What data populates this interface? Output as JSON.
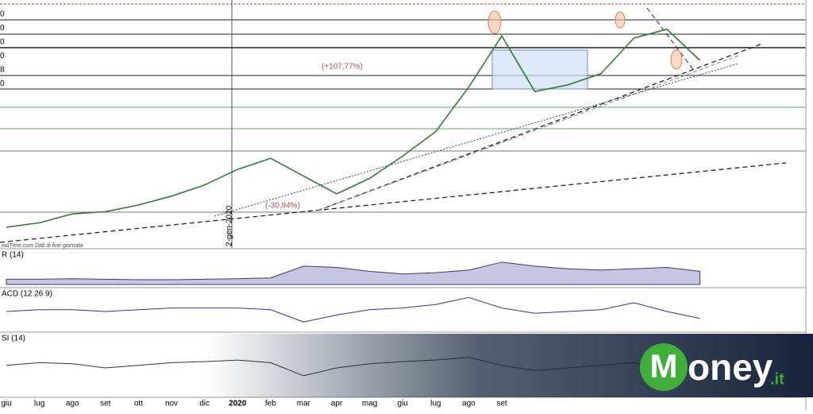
{
  "chart_data": [
    {
      "type": "line",
      "name": "price",
      "categories": [
        "giu",
        "lug",
        "ago",
        "set",
        "ott",
        "nov",
        "dic",
        "2020",
        "feb",
        "mar",
        "apr",
        "mag",
        "giu",
        "lug",
        "ago",
        "set",
        null,
        null,
        null,
        null,
        null,
        null
      ],
      "values": [
        5,
        7,
        11,
        12,
        15,
        19,
        24,
        31,
        36,
        28,
        20,
        27,
        37,
        48,
        68,
        91,
        66,
        69,
        74,
        90,
        94,
        80
      ],
      "color": "#2e7d32",
      "ylim": [
        0,
        100
      ],
      "annotations": [
        "(+107,77%)",
        "(-30,94%)",
        "2-gen-2020"
      ],
      "source": "ealTime.com Dati di fine giornata",
      "tick_fragments": [
        "0",
        "0",
        "0",
        "0",
        "8",
        "0"
      ]
    },
    {
      "type": "area",
      "title": "R (14)",
      "values": [
        20,
        20,
        22,
        20,
        18,
        18,
        20,
        22,
        25,
        70,
        65,
        50,
        40,
        45,
        55,
        85,
        70,
        60,
        55,
        60,
        65,
        50
      ],
      "color": "#3a3a6a",
      "ylim": [
        0,
        100
      ]
    },
    {
      "type": "line",
      "title": "ACD (12 26 9)",
      "values": [
        0,
        5,
        5,
        0,
        5,
        10,
        10,
        10,
        5,
        -30,
        -10,
        5,
        10,
        20,
        40,
        10,
        -5,
        0,
        5,
        25,
        0,
        -20
      ],
      "color": "#3030a0",
      "ylim": [
        -50,
        50
      ]
    },
    {
      "type": "line",
      "title": "SI (14)",
      "values": [
        55,
        60,
        58,
        50,
        55,
        60,
        62,
        65,
        60,
        35,
        50,
        58,
        62,
        65,
        70,
        55,
        45,
        50,
        55,
        60,
        45,
        55
      ],
      "color": "#333333",
      "ylim": [
        0,
        100
      ]
    }
  ],
  "logo": {
    "main": "oney",
    "suffix": ".it",
    "initial": "M"
  }
}
